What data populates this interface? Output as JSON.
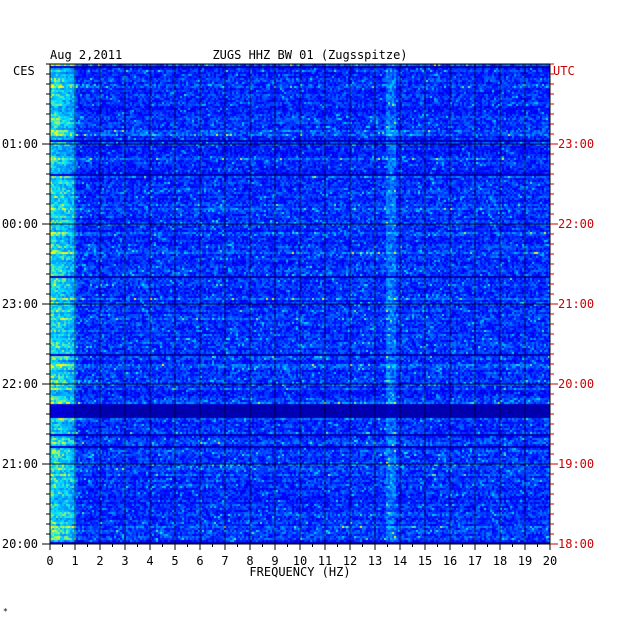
{
  "chart_data": {
    "type": "heatmap",
    "title": "ZUGS HHZ BW 01 (Zugsspitze)",
    "date": "Aug 2,2011",
    "xlabel": "FREQUENCY (HZ)",
    "xlim": [
      0,
      20
    ],
    "x_ticks": [
      "0",
      "1",
      "2",
      "3",
      "4",
      "5",
      "6",
      "7",
      "8",
      "9",
      "10",
      "11",
      "12",
      "13",
      "14",
      "15",
      "16",
      "17",
      "18",
      "19",
      "20"
    ],
    "left_axis": {
      "label": "CES",
      "ticks": [
        "01:00",
        "00:00",
        "23:00",
        "22:00",
        "21:00",
        "20:00"
      ],
      "color": "#000000"
    },
    "right_axis": {
      "label": "UTC",
      "ticks": [
        "23:00",
        "22:00",
        "21:00",
        "20:00",
        "19:00",
        "18:00"
      ],
      "color": "#cc0000"
    },
    "notable_features": {
      "dominant_low_frequency_band_hz": [
        0,
        1
      ],
      "persistent_line_hz": 13.6,
      "quiet_gap_utc": "19:40"
    },
    "colormap": [
      "#00008b",
      "#0000ff",
      "#0080ff",
      "#00e5ff",
      "#ffff00"
    ]
  },
  "corner_mark": "*"
}
